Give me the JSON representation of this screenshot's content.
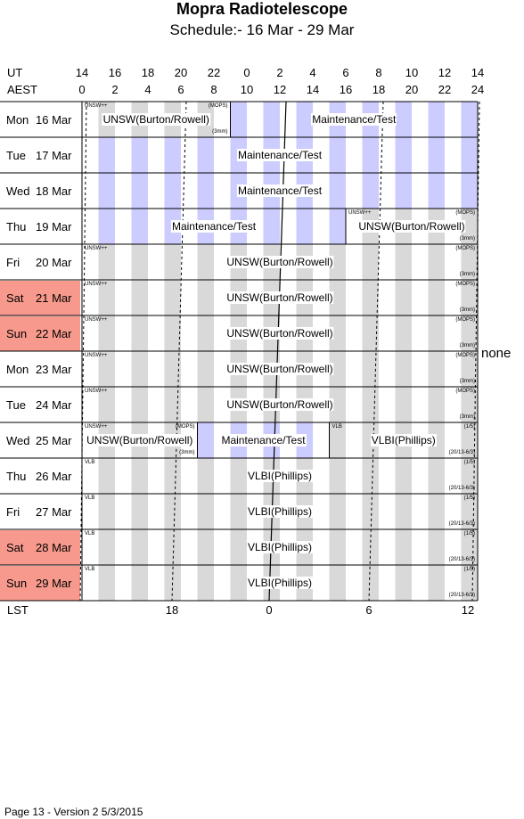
{
  "header": {
    "title": "Mopra Radiotelescope",
    "subtitle": "Schedule:- 16 Mar - 29 Mar"
  },
  "axis": {
    "ut_label": "UT",
    "aest_label": "AEST",
    "ut_hours": [
      "14",
      "16",
      "18",
      "20",
      "22",
      "0",
      "2",
      "4",
      "6",
      "8",
      "10",
      "12",
      "14"
    ],
    "aest_hours": [
      "0",
      "2",
      "4",
      "6",
      "8",
      "10",
      "12",
      "14",
      "16",
      "18",
      "20",
      "22",
      "24"
    ],
    "lst_label": "LST",
    "lst_ticks": [
      "18",
      "0",
      "6",
      "12"
    ]
  },
  "days": [
    {
      "name": "Mon",
      "date": "16 Mar",
      "weekend": false
    },
    {
      "name": "Tue",
      "date": "17 Mar",
      "weekend": false
    },
    {
      "name": "Wed",
      "date": "18 Mar",
      "weekend": false
    },
    {
      "name": "Thu",
      "date": "19 Mar",
      "weekend": false
    },
    {
      "name": "Fri",
      "date": "20 Mar",
      "weekend": false
    },
    {
      "name": "Sat",
      "date": "21 Mar",
      "weekend": true
    },
    {
      "name": "Sun",
      "date": "22 Mar",
      "weekend": true
    },
    {
      "name": "Mon",
      "date": "23 Mar",
      "weekend": false
    },
    {
      "name": "Tue",
      "date": "24 Mar",
      "weekend": false
    },
    {
      "name": "Wed",
      "date": "25 Mar",
      "weekend": false
    },
    {
      "name": "Thu",
      "date": "26 Mar",
      "weekend": false
    },
    {
      "name": "Fri",
      "date": "27 Mar",
      "weekend": false
    },
    {
      "name": "Sat",
      "date": "28 Mar",
      "weekend": true
    },
    {
      "name": "Sun",
      "date": "29 Mar",
      "weekend": true
    }
  ],
  "sessions": [
    {
      "day": 0,
      "start": 0,
      "end": 9,
      "type": "astro",
      "label": "UNSW(Burton/Rowell)",
      "tl": "UNSW++",
      "tr": "(MOPS)",
      "br": "(3mm)"
    },
    {
      "day": 0,
      "start": 9,
      "end": 24,
      "type": "maint",
      "label": "Maintenance/Test"
    },
    {
      "day": 1,
      "start": 0,
      "end": 24,
      "type": "maint",
      "label": "Maintenance/Test"
    },
    {
      "day": 2,
      "start": 0,
      "end": 24,
      "type": "maint",
      "label": "Maintenance/Test"
    },
    {
      "day": 3,
      "start": 0,
      "end": 16,
      "type": "maint",
      "label": "Maintenance/Test"
    },
    {
      "day": 3,
      "start": 16,
      "end": 24,
      "type": "astro",
      "label": "UNSW(Burton/Rowell)",
      "tl": "UNSW++",
      "tr": "(MOPS)",
      "br": "(3mm)"
    },
    {
      "day": 4,
      "start": 0,
      "end": 24,
      "type": "astro",
      "label": "UNSW(Burton/Rowell)",
      "tl": "UNSW++",
      "tr": "(MOPS)",
      "br": "(3mm)"
    },
    {
      "day": 5,
      "start": 0,
      "end": 24,
      "type": "astro",
      "label": "UNSW(Burton/Rowell)",
      "tl": "UNSW++",
      "tr": "(MOPS)",
      "br": "(3mm)"
    },
    {
      "day": 6,
      "start": 0,
      "end": 24,
      "type": "astro",
      "label": "UNSW(Burton/Rowell)",
      "tl": "UNSW++",
      "tr": "(MOPS)",
      "br": "(3mm)"
    },
    {
      "day": 7,
      "start": 0,
      "end": 24,
      "type": "astro",
      "label": "UNSW(Burton/Rowell)",
      "tl": "UNSW++",
      "tr": "(MOPS)",
      "br": "(3mm)"
    },
    {
      "day": 8,
      "start": 0,
      "end": 24,
      "type": "astro",
      "label": "UNSW(Burton/Rowell)",
      "tl": "UNSW++",
      "tr": "(MOPS)",
      "br": "(3mm)"
    },
    {
      "day": 9,
      "start": 0,
      "end": 7,
      "type": "astro",
      "label": "UNSW(Burton/Rowell)",
      "tl": "UNSW++",
      "tr": "(MOPS)",
      "br": "(3mm)"
    },
    {
      "day": 9,
      "start": 7,
      "end": 15,
      "type": "maint",
      "label": "Maintenance/Test"
    },
    {
      "day": 9,
      "start": 15,
      "end": 24,
      "type": "astro",
      "label": "VLBI(Phillips)",
      "tl": "VLB",
      "tr": "(1/5)",
      "br": "(20/13-6/3)"
    },
    {
      "day": 10,
      "start": 0,
      "end": 24,
      "type": "astro",
      "label": "VLBI(Phillips)",
      "tl": "VLB",
      "tr": "(1/5)",
      "br": "(20/13-6/3)"
    },
    {
      "day": 11,
      "start": 0,
      "end": 24,
      "type": "astro",
      "label": "VLBI(Phillips)",
      "tl": "VLB",
      "tr": "(1/5)",
      "br": "(20/13-6/3)"
    },
    {
      "day": 12,
      "start": 0,
      "end": 24,
      "type": "astro",
      "label": "VLBI(Phillips)",
      "tl": "VLB",
      "tr": "(1/5)",
      "br": "(20/13-6/3)"
    },
    {
      "day": 13,
      "start": 0,
      "end": 24,
      "type": "astro",
      "label": "VLBI(Phillips)",
      "tl": "VLB",
      "tr": "(1/5)",
      "br": "(20/13-6/3)"
    }
  ],
  "side_note": "none",
  "footer": "Page 13 - Version 2  5/3/2015",
  "colors": {
    "weekend": "#f7998c",
    "maintenance_stripe": "#ccccff",
    "astro_stripe": "#d9d9d9",
    "grid_line": "#000000"
  }
}
